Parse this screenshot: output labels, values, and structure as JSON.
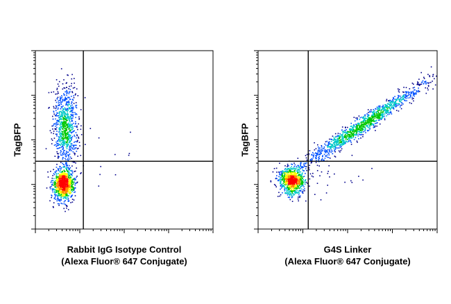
{
  "chart_data": [
    {
      "type": "scatter",
      "subtype": "flow-cytometry-density-dot-plot",
      "title": "",
      "ylabel": "TagBFP",
      "xlabel_lines": [
        "Rabbit IgG Isotype Control",
        "(Alexa Fluor® 647 Conjugate)"
      ],
      "x_scale": "log",
      "y_scale": "log",
      "xlim": [
        0,
        1
      ],
      "ylim": [
        0,
        1
      ],
      "gates": {
        "x": 0.27,
        "y": 0.38
      },
      "populations": [
        {
          "name": "",
          "x": 0.16,
          "y": 0.25,
          "sx": 0.03,
          "sy": 0.045,
          "count": 950,
          "corr": 0.0
        },
        {
          "name": "",
          "x": 0.17,
          "y": 0.58,
          "sx": 0.035,
          "sy": 0.11,
          "count": 850,
          "corr": 0.0
        },
        {
          "name": "",
          "x": 0.3,
          "y": 0.4,
          "sx": 0.12,
          "sy": 0.08,
          "count": 25,
          "corr": 0.0
        }
      ],
      "grid": false,
      "legend": "none",
      "colormap": [
        "#00008b",
        "#0050ff",
        "#00c8c8",
        "#00c800",
        "#ffff00",
        "#ff8c00",
        "#ff0000"
      ]
    },
    {
      "type": "scatter",
      "subtype": "flow-cytometry-density-dot-plot",
      "title": "",
      "ylabel": "TagBFP",
      "xlabel_lines": [
        "G4S Linker",
        "(Alexa Fluor® 647 Conjugate)"
      ],
      "x_scale": "log",
      "y_scale": "log",
      "xlim": [
        0,
        1
      ],
      "ylim": [
        0,
        1
      ],
      "gates": {
        "x": 0.28,
        "y": 0.38
      },
      "populations": [
        {
          "name": "",
          "x": 0.19,
          "y": 0.27,
          "sx": 0.035,
          "sy": 0.04,
          "count": 850,
          "corr": 0.0
        },
        {
          "name": "",
          "x": 0.58,
          "y": 0.58,
          "sx": 0.18,
          "sy": 0.12,
          "count": 1300,
          "corr": 0.97
        },
        {
          "name": "",
          "x": 0.35,
          "y": 0.3,
          "sx": 0.12,
          "sy": 0.06,
          "count": 40,
          "corr": 0.0
        }
      ],
      "grid": false,
      "legend": "none",
      "colormap": [
        "#00008b",
        "#0050ff",
        "#00c8c8",
        "#00c800",
        "#ffff00",
        "#ff8c00",
        "#ff0000"
      ]
    }
  ]
}
